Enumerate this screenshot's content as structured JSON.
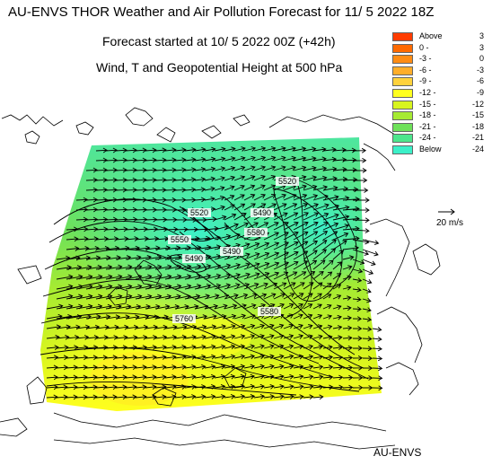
{
  "title": "AU-ENVS THOR Weather and Air Pollution Forecast for 11/ 5 2022  18Z",
  "subtitle_forecast": "Forecast started at 10/ 5 2022  00Z (+42h)",
  "subtitle_fields": "Wind, T and Geopotential Height at 500 hPa",
  "credit": "AU-ENVS",
  "vector_reference_label": "20 m/s",
  "legend": {
    "items": [
      {
        "label_left": "Above",
        "label_right": "3",
        "color": "#ff3c00"
      },
      {
        "label_left": "0 -",
        "label_right": "3",
        "color": "#ff6a00"
      },
      {
        "label_left": "-3 -",
        "label_right": "0",
        "color": "#ff8c14"
      },
      {
        "label_left": "-6 -",
        "label_right": "-3",
        "color": "#ffae2a"
      },
      {
        "label_left": "-9 -",
        "label_right": "-6",
        "color": "#ffd23c"
      },
      {
        "label_left": "-12 -",
        "label_right": "-9",
        "color": "#ffff1e"
      },
      {
        "label_left": "-15 -",
        "label_right": "-12",
        "color": "#d8f51e"
      },
      {
        "label_left": "-18 -",
        "label_right": "-15",
        "color": "#a6eb32"
      },
      {
        "label_left": "-21 -",
        "label_right": "-18",
        "color": "#6ee15a"
      },
      {
        "label_left": "-24 -",
        "label_right": "-21",
        "color": "#4de68c"
      },
      {
        "label_left": "Below",
        "label_right": "-24",
        "color": "#3cf0c8"
      }
    ]
  },
  "contour_labels": [
    "5520",
    "5550",
    "5490",
    "5490",
    "5760",
    "5580",
    "5490",
    "5520",
    "5580"
  ],
  "colors": {
    "map_edge_cyan": "#3cf0c8",
    "map_yellow": "#ffff1e",
    "coastline": "#000000",
    "vectors": "#000000"
  }
}
